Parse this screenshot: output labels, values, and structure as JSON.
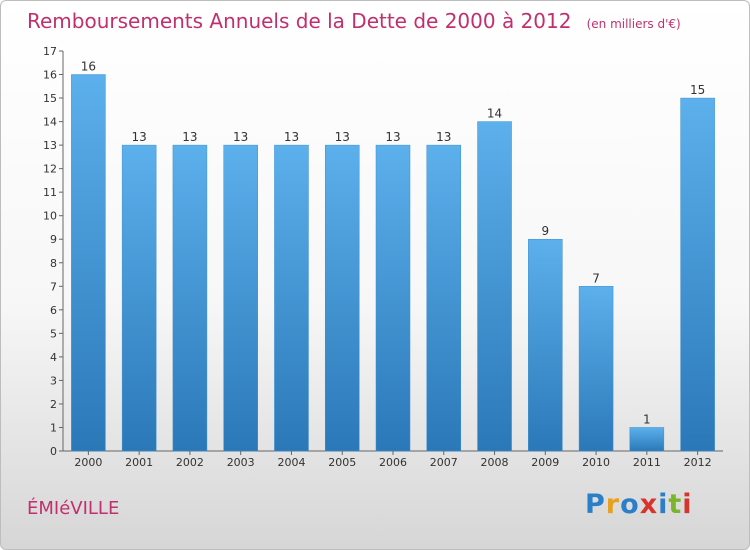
{
  "title": "Remboursements Annuels de la Dette de 2000 à 2012",
  "unit_note": "(en milliers d'€)",
  "city": "ÉMIéVILLE",
  "logo": {
    "letters": [
      "P",
      "r",
      "o",
      "x",
      "i",
      "t",
      "i"
    ],
    "colors": [
      "#2b7fc8",
      "#e8a020",
      "#2b7fc8",
      "#d8342c",
      "#2b7fc8",
      "#7ab52c",
      "#d8342c"
    ]
  },
  "colors": {
    "bar_top": "#5cb0ec",
    "bar_bottom": "#2b78b8",
    "title": "#c0306e"
  },
  "chart_data": {
    "type": "bar",
    "title": "Remboursements Annuels de la Dette de 2000 à 2012",
    "ylabel": "en milliers d'€",
    "xlabel": "",
    "ylim": [
      0,
      17
    ],
    "yticks": [
      0,
      1,
      2,
      3,
      4,
      5,
      6,
      7,
      8,
      9,
      10,
      11,
      12,
      13,
      14,
      15,
      16,
      17
    ],
    "categories": [
      "2000",
      "2001",
      "2002",
      "2003",
      "2004",
      "2005",
      "2006",
      "2007",
      "2008",
      "2009",
      "2010",
      "2011",
      "2012"
    ],
    "values": [
      16,
      13,
      13,
      13,
      13,
      13,
      13,
      13,
      14,
      9,
      7,
      1,
      15
    ],
    "grid": false,
    "legend": "none"
  }
}
